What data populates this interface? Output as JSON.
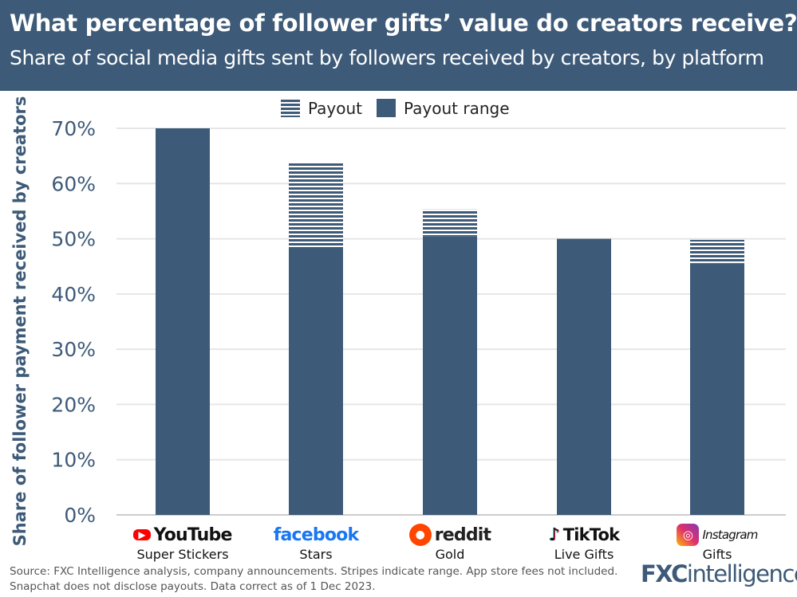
{
  "header": {
    "title": "What percentage of follower gifts’ value do creators receive?",
    "subtitle": "Share of social media gifts sent by followers received by creators, by platform"
  },
  "chart_data": {
    "type": "bar",
    "title": "What percentage of follower gifts’ value do creators receive?",
    "ylabel": "Share of follower payment received by creators",
    "ylim": [
      0,
      70
    ],
    "yticks": [
      "0%",
      "10%",
      "20%",
      "30%",
      "40%",
      "50%",
      "60%",
      "70%"
    ],
    "grid": true,
    "legend_placement": "top",
    "legend": [
      {
        "label": "Payout",
        "style": "striped"
      },
      {
        "label": "Payout range",
        "style": "solid"
      }
    ],
    "categories": [
      "YouTube Super Stickers",
      "Facebook Stars",
      "Reddit Gold",
      "TikTok Live Gifts",
      "Instagram Gifts"
    ],
    "series": [
      {
        "name": "Payout range",
        "style": "solid",
        "values": [
          70,
          48.5,
          50.4,
          50,
          45.5
        ]
      },
      {
        "name": "Payout",
        "style": "striped",
        "low": [
          70,
          48.5,
          50.4,
          50,
          45.5
        ],
        "high": [
          70,
          63.7,
          55.3,
          50,
          49.8
        ]
      }
    ],
    "colors": {
      "bar": "#3d5a78",
      "grid": "#e6e6e6"
    }
  },
  "platforms": [
    {
      "brand": "YouTube",
      "product": "Super Stickers",
      "color": "#ff0000"
    },
    {
      "brand": "facebook",
      "product": "Stars",
      "color": "#1877f2"
    },
    {
      "brand": "reddit",
      "product": "Gold",
      "color": "#ff4500"
    },
    {
      "brand": "TikTok",
      "product": "Live Gifts",
      "color": "#000000"
    },
    {
      "brand": "Instagram",
      "product": "Gifts",
      "color": "#d6249f"
    }
  ],
  "footer": {
    "source_line1": "Source: FXC Intelligence analysis, company announcements. Stripes indicate range. App store fees not included.",
    "source_line2": "Snapchat does not disclose payouts. Data correct as of 1 Dec 2023.",
    "logo_fx": "FXC",
    "logo_rest": "intelligence"
  }
}
